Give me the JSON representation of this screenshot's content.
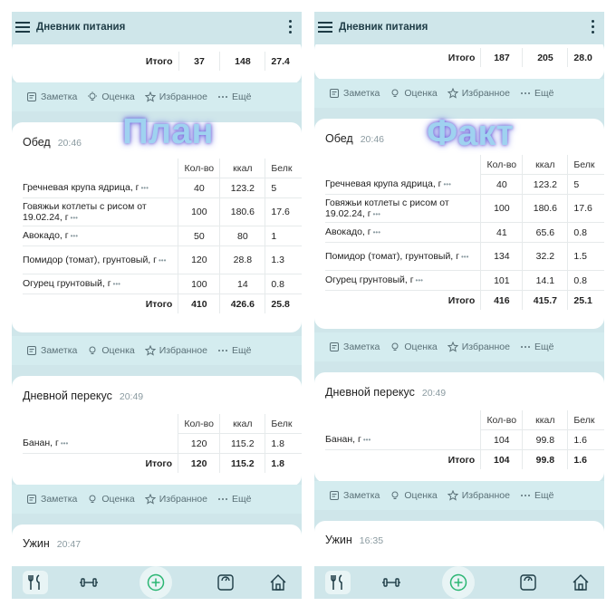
{
  "app": {
    "title": "Дневник питания"
  },
  "actions": {
    "note": "Заметка",
    "rate": "Оценка",
    "fav": "Избранное",
    "more": "Ещё"
  },
  "columns": {
    "qty": "Кол-во",
    "kcal": "ккал",
    "protein": "Белк"
  },
  "total_label": "Итого",
  "left": {
    "overlay": "План",
    "top_total": {
      "qty": "37",
      "kcal": "148",
      "protein": "27.4"
    },
    "lunch": {
      "title": "Обед",
      "time": "20:46",
      "rows": [
        {
          "name": "Гречневая крупа ядрица, г",
          "qty": "40",
          "kcal": "123.2",
          "protein": "5"
        },
        {
          "name": "Говяжьи котлеты с рисом от 19.02.24, г",
          "qty": "100",
          "kcal": "180.6",
          "protein": "17.6"
        },
        {
          "name": "Авокадо, г",
          "qty": "50",
          "kcal": "80",
          "protein": "1"
        },
        {
          "name": "Помидор (томат), грунтовый, г",
          "qty": "120",
          "kcal": "28.8",
          "protein": "1.3"
        },
        {
          "name": "Огурец грунтовый, г",
          "qty": "100",
          "kcal": "14",
          "protein": "0.8"
        }
      ],
      "total": {
        "qty": "410",
        "kcal": "426.6",
        "protein": "25.8"
      }
    },
    "snack": {
      "title": "Дневной перекус",
      "time": "20:49",
      "rows": [
        {
          "name": "Банан, г",
          "qty": "120",
          "kcal": "115.2",
          "protein": "1.8"
        }
      ],
      "total": {
        "qty": "120",
        "kcal": "115.2",
        "protein": "1.8"
      }
    },
    "dinner": {
      "title": "Ужин",
      "time": "20:47"
    }
  },
  "right": {
    "overlay": "Факт",
    "top_total": {
      "qty": "187",
      "kcal": "205",
      "protein": "28.0"
    },
    "lunch": {
      "title": "Обед",
      "time": "20:46",
      "rows": [
        {
          "name": "Гречневая крупа ядрица, г",
          "qty": "40",
          "kcal": "123.2",
          "protein": "5"
        },
        {
          "name": "Говяжьи котлеты с рисом от 19.02.24, г",
          "qty": "100",
          "kcal": "180.6",
          "protein": "17.6"
        },
        {
          "name": "Авокадо, г",
          "qty": "41",
          "kcal": "65.6",
          "protein": "0.8"
        },
        {
          "name": "Помидор (томат), грунтовый, г",
          "qty": "134",
          "kcal": "32.2",
          "protein": "1.5"
        },
        {
          "name": "Огурец грунтовый, г",
          "qty": "101",
          "kcal": "14.1",
          "protein": "0.8"
        }
      ],
      "total": {
        "qty": "416",
        "kcal": "415.7",
        "protein": "25.1"
      }
    },
    "snack": {
      "title": "Дневной перекус",
      "time": "20:49",
      "rows": [
        {
          "name": "Банан, г",
          "qty": "104",
          "kcal": "99.8",
          "protein": "1.6"
        }
      ],
      "total": {
        "qty": "104",
        "kcal": "99.8",
        "protein": "1.6"
      }
    },
    "dinner": {
      "title": "Ужин",
      "time": "16:35"
    }
  },
  "icons": [
    "menu-icon",
    "more-vert-icon",
    "note-icon",
    "bulb-icon",
    "star-icon",
    "dots-icon",
    "fork-knife-icon",
    "dumbbell-icon",
    "add-circle-icon",
    "scale-icon",
    "home-icon"
  ],
  "colors": {
    "bar": "#cfe6ea",
    "actbar": "#d4ecef",
    "accent": "#2bb673"
  }
}
